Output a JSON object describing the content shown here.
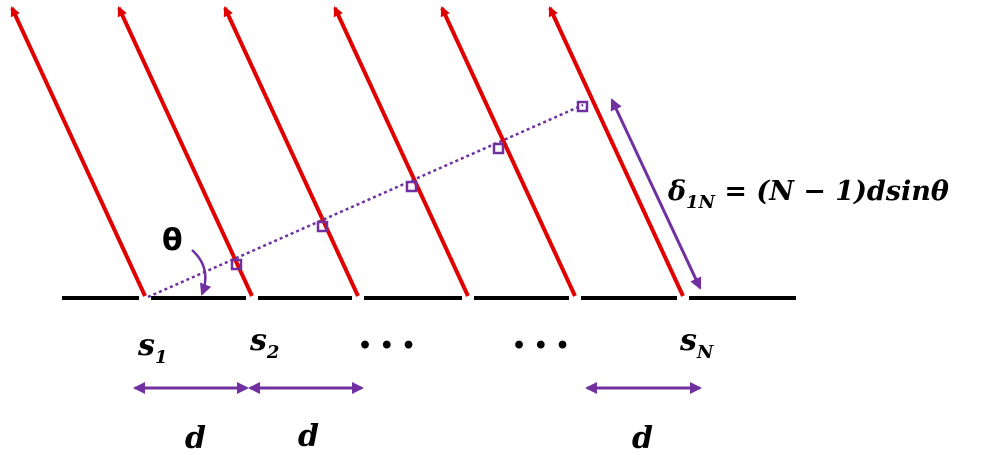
{
  "theta_label": "θ",
  "formula": {
    "symbol": "δ",
    "sub": "1N",
    "rest": " = (N − 1)dsinθ"
  },
  "slits": [
    {
      "letter": "s",
      "sub": "1"
    },
    {
      "letter": "s",
      "sub": "2"
    },
    {
      "letter": "s",
      "sub": "N"
    }
  ],
  "ellipses": [
    "• • •",
    "• • •"
  ],
  "spacings": [
    "d",
    "d",
    "d"
  ]
}
